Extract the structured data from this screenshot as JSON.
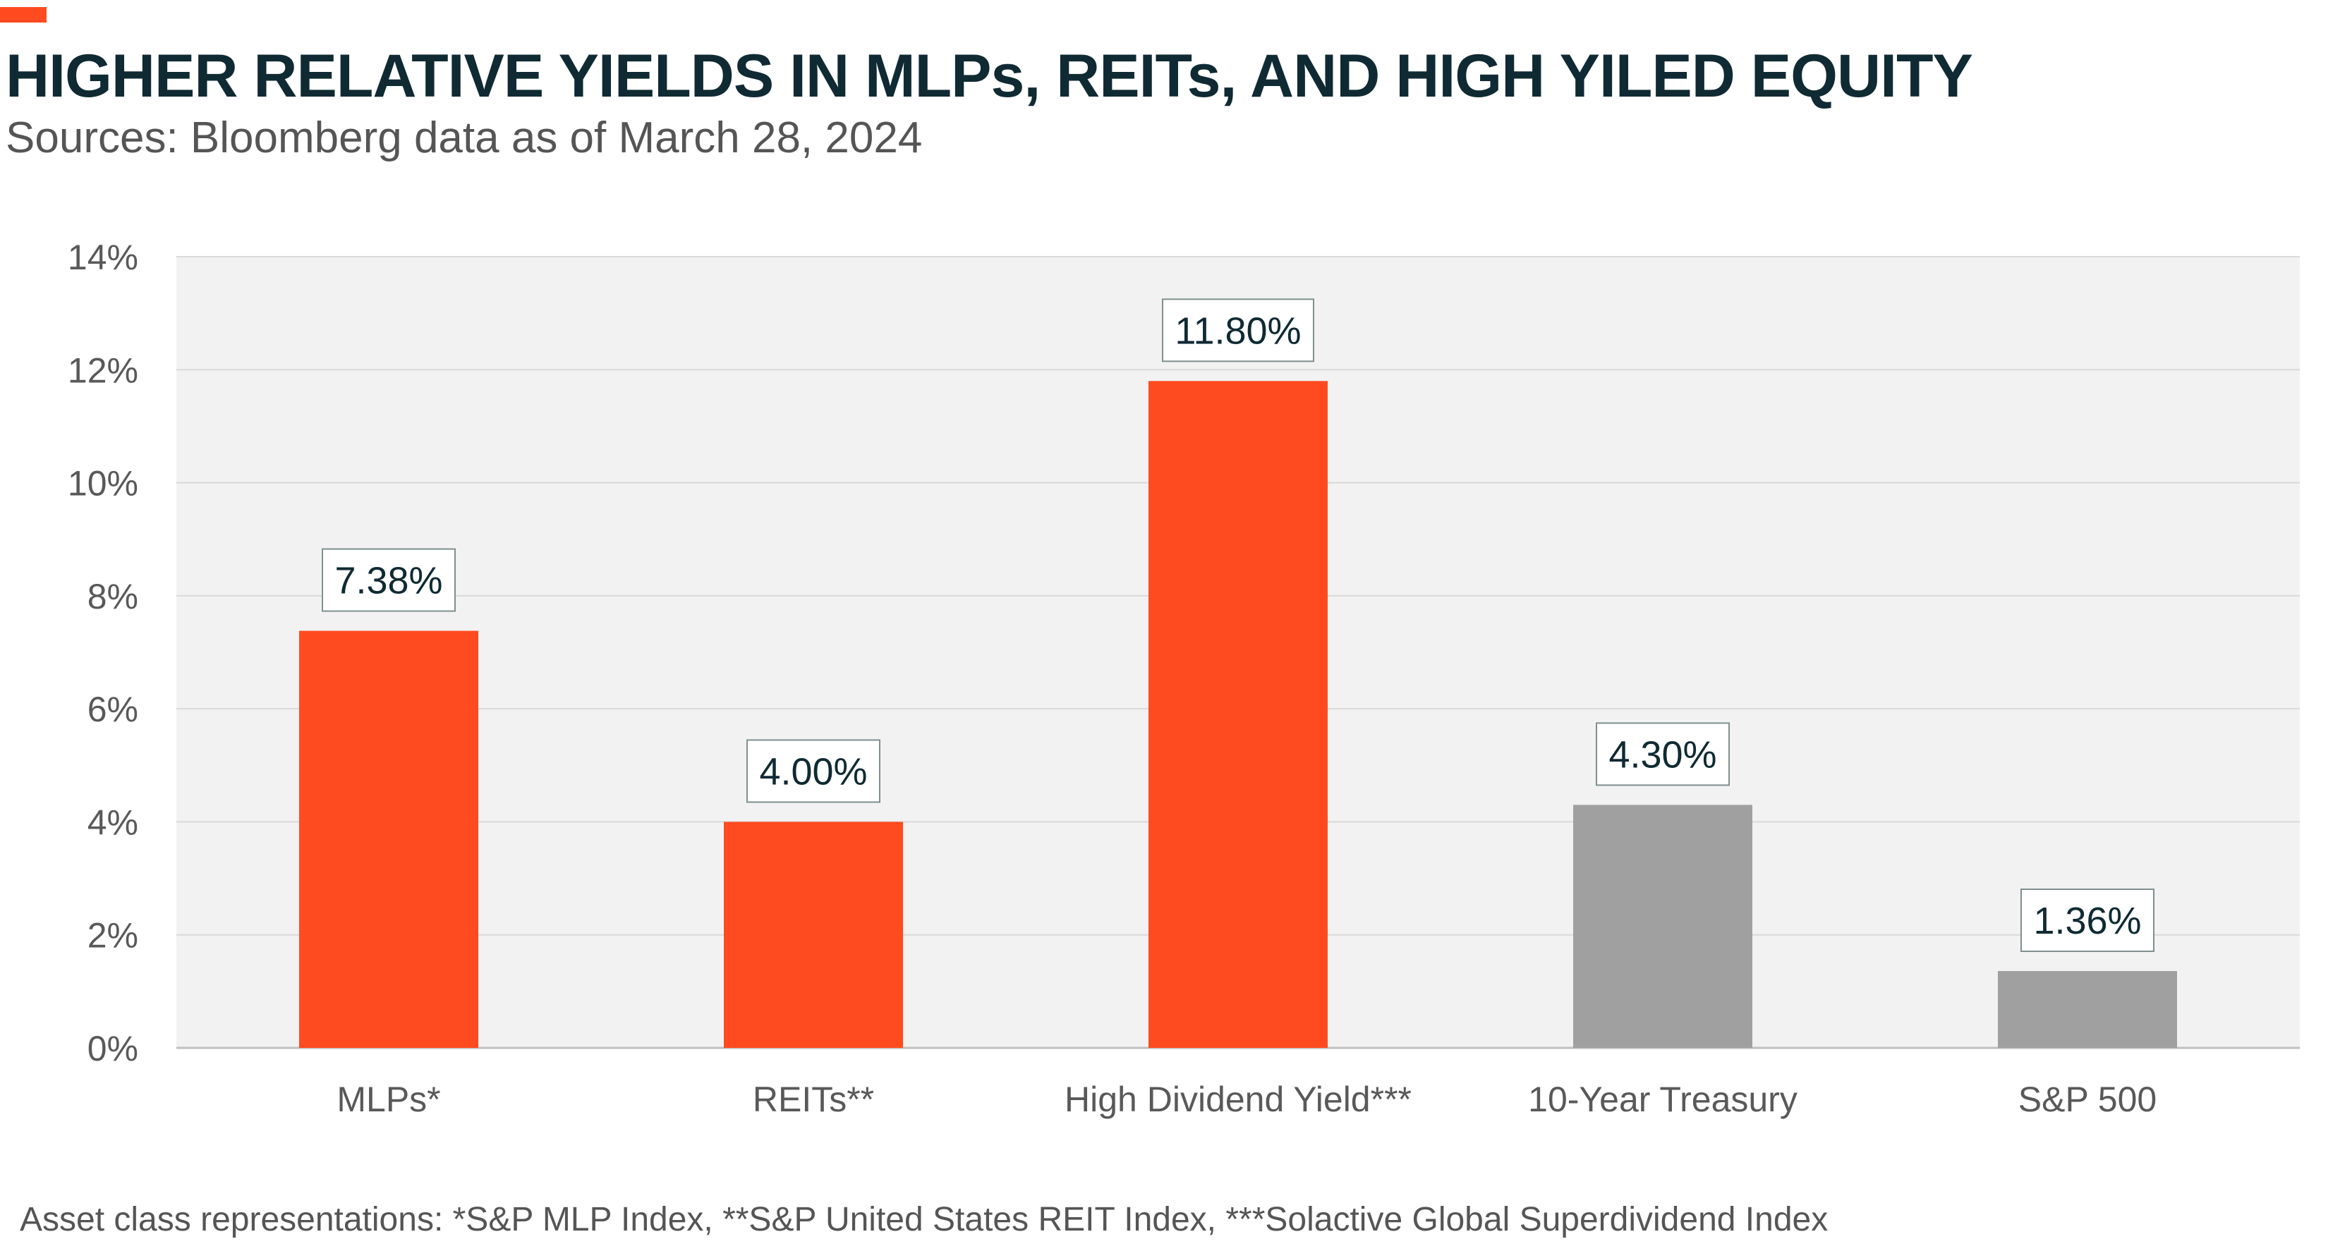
{
  "header": {
    "title": "HIGHER RELATIVE YIELDS IN MLPs, REITs, AND HIGH YILED EQUITY",
    "subtitle": "Sources: Bloomberg data as of March 28, 2024"
  },
  "footnote": "Asset class representations: *S&P MLP Index, **S&P United States REIT Index, ***Solactive Global Superdividend Index",
  "colors": {
    "accent": "#FF4B1F",
    "bar_primary": "#FF4B1F",
    "bar_secondary": "#A0A0A0",
    "plot_background": "#F2F2F2",
    "gridline": "#D9D9D9",
    "title": "#0F2A33"
  },
  "chart_data": {
    "type": "bar",
    "title": "HIGHER RELATIVE YIELDS IN MLPs, REITs, AND HIGH YILED EQUITY",
    "subtitle": "Sources: Bloomberg data as of March 28, 2024",
    "xlabel": "",
    "ylabel": "",
    "categories": [
      "MLPs*",
      "REITs**",
      "High Dividend Yield***",
      "10-Year Treasury",
      "S&P 500"
    ],
    "values": [
      7.38,
      4.0,
      11.8,
      4.3,
      1.36
    ],
    "data_labels": [
      "7.38%",
      "4.00%",
      "11.80%",
      "4.30%",
      "1.36%"
    ],
    "bar_colors": [
      "#FF4B1F",
      "#FF4B1F",
      "#FF4B1F",
      "#A0A0A0",
      "#A0A0A0"
    ],
    "ylim": [
      0,
      14
    ],
    "yticks": [
      0,
      2,
      4,
      6,
      8,
      10,
      12,
      14
    ],
    "ytick_labels": [
      "0%",
      "2%",
      "4%",
      "6%",
      "8%",
      "10%",
      "12%",
      "14%"
    ],
    "grid": true,
    "legend": "none"
  }
}
